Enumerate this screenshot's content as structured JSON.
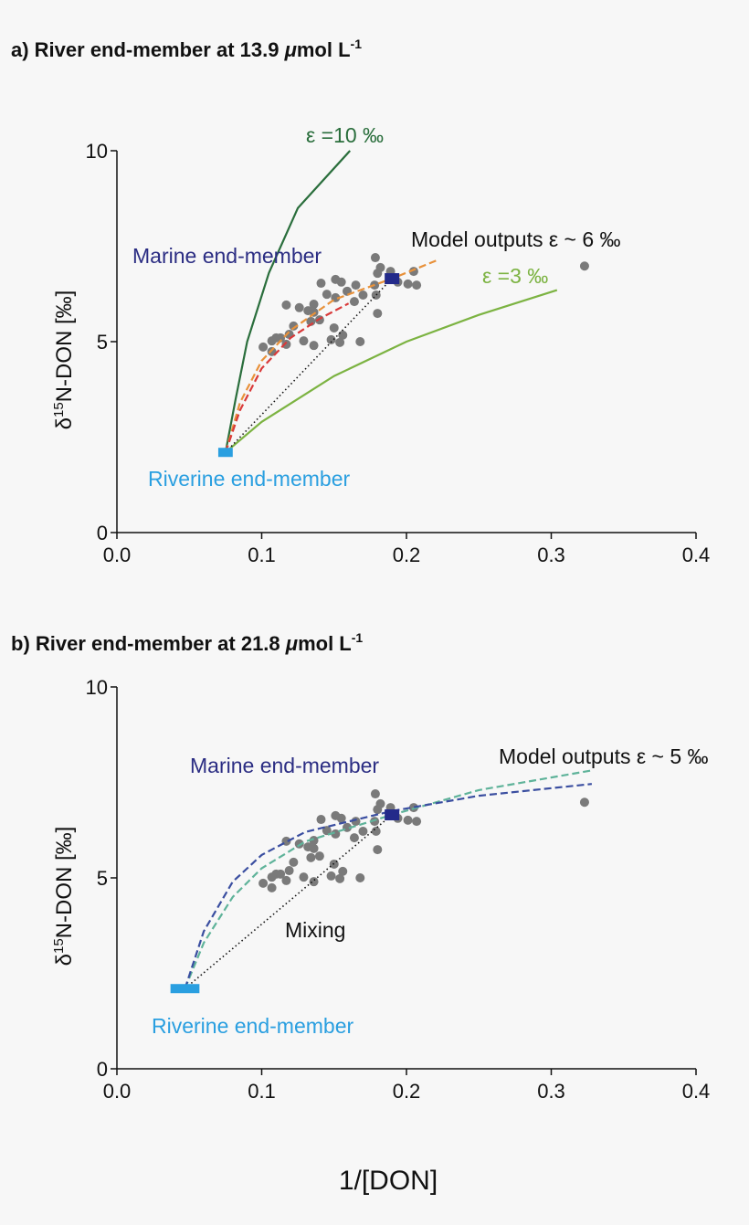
{
  "chart_data": [
    {
      "type": "scatter",
      "title": "a) River end-member at 13.9 μmol L-1",
      "title_parts": {
        "main": "a) River end-member at 13.9 ",
        "mu": "μ",
        "unit": "mol L",
        "sup": "-1"
      },
      "ylabel": {
        "delta": "δ",
        "sup": "15",
        "rest": "N-DON [‰]"
      },
      "xlim": [
        0,
        0.4
      ],
      "ylim": [
        0,
        10
      ],
      "xticks": [
        "0.0",
        "0.1",
        "0.2",
        "0.3",
        "0.4"
      ],
      "xtick_values": [
        0,
        0.1,
        0.2,
        0.3,
        0.4
      ],
      "yticks": [
        "0",
        "5",
        "10"
      ],
      "ytick_values": [
        0,
        5,
        10
      ],
      "grid": false,
      "points_color": "#7a7a7a",
      "points": [
        [
          0.1785,
          7.2
        ],
        [
          0.182,
          6.94
        ],
        [
          0.189,
          6.84
        ],
        [
          0.18,
          6.79
        ],
        [
          0.205,
          6.84
        ],
        [
          0.201,
          6.51
        ],
        [
          0.207,
          6.48
        ],
        [
          0.194,
          6.56
        ],
        [
          0.178,
          6.48
        ],
        [
          0.179,
          6.22
        ],
        [
          0.18,
          5.74
        ],
        [
          0.141,
          6.53
        ],
        [
          0.151,
          6.63
        ],
        [
          0.155,
          6.56
        ],
        [
          0.165,
          6.48
        ],
        [
          0.159,
          6.32
        ],
        [
          0.145,
          6.24
        ],
        [
          0.151,
          6.15
        ],
        [
          0.17,
          6.22
        ],
        [
          0.164,
          6.05
        ],
        [
          0.117,
          5.96
        ],
        [
          0.126,
          5.89
        ],
        [
          0.136,
          5.98
        ],
        [
          0.132,
          5.81
        ],
        [
          0.136,
          5.77
        ],
        [
          0.134,
          5.53
        ],
        [
          0.14,
          5.57
        ],
        [
          0.122,
          5.41
        ],
        [
          0.119,
          5.19
        ],
        [
          0.11,
          5.1
        ],
        [
          0.107,
          5.02
        ],
        [
          0.113,
          5.1
        ],
        [
          0.101,
          4.86
        ],
        [
          0.107,
          4.74
        ],
        [
          0.117,
          4.93
        ],
        [
          0.136,
          4.9
        ],
        [
          0.15,
          5.36
        ],
        [
          0.156,
          5.17
        ],
        [
          0.154,
          4.98
        ],
        [
          0.168,
          5.0
        ],
        [
          0.148,
          5.05
        ],
        [
          0.129,
          5.02
        ],
        [
          0.323,
          6.98
        ]
      ],
      "riverine_end_member": {
        "label": "Riverine end-member",
        "x": [
          0.07,
          0.08
        ],
        "y": 2.1,
        "color": "#2a9fe0"
      },
      "marine_end_member": {
        "label": "Marine end-member",
        "x": 0.19,
        "y": 6.65,
        "color": "#232a8a"
      },
      "curves": [
        {
          "name": "ε =10 ‰",
          "style": "solid",
          "color": "#2a6e3c",
          "points": [
            [
              0.075,
              2.1
            ],
            [
              0.082,
              3.5
            ],
            [
              0.09,
              5.0
            ],
            [
              0.105,
              6.8
            ],
            [
              0.125,
              8.5
            ],
            [
              0.161,
              10
            ]
          ]
        },
        {
          "name": "ε =3 ‰",
          "style": "solid",
          "color": "#7cb342",
          "points": [
            [
              0.075,
              2.1
            ],
            [
              0.1,
              2.9
            ],
            [
              0.15,
              4.1
            ],
            [
              0.2,
              5.0
            ],
            [
              0.25,
              5.7
            ],
            [
              0.304,
              6.35
            ]
          ]
        },
        {
          "name": "Model outputs ε ~ 6 ‰",
          "style": "dashed",
          "color": "#e8913a",
          "points": [
            [
              0.075,
              2.1
            ],
            [
              0.085,
              3.4
            ],
            [
              0.1,
              4.5
            ],
            [
              0.12,
              5.3
            ],
            [
              0.15,
              6.1
            ],
            [
              0.19,
              6.65
            ],
            [
              0.221,
              7.13
            ]
          ]
        },
        {
          "name": "",
          "style": "dashed",
          "color": "#d93a3a",
          "points": [
            [
              0.075,
              2.1
            ],
            [
              0.085,
              3.2
            ],
            [
              0.1,
              4.3
            ],
            [
              0.12,
              5.1
            ],
            [
              0.14,
              5.6
            ],
            [
              0.16,
              6.0
            ]
          ]
        },
        {
          "name": "",
          "style": "dotted",
          "color": "#111111",
          "points": [
            [
              0.075,
              2.1
            ],
            [
              0.19,
              6.65
            ]
          ]
        }
      ]
    },
    {
      "type": "scatter",
      "title": "b) River end-member at 21.8 μmol L-1",
      "title_parts": {
        "main": "b) River end-member at 21.8 ",
        "mu": "μ",
        "unit": "mol L",
        "sup": "-1"
      },
      "ylabel": {
        "delta": "δ",
        "sup": "15",
        "rest": "N-DON [‰]"
      },
      "xlabel": "1/[DON]",
      "xlim": [
        0,
        0.4
      ],
      "ylim": [
        0,
        10
      ],
      "xticks": [
        "0.0",
        "0.1",
        "0.2",
        "0.3",
        "0.4"
      ],
      "xtick_values": [
        0,
        0.1,
        0.2,
        0.3,
        0.4
      ],
      "yticks": [
        "0",
        "5",
        "10"
      ],
      "ytick_values": [
        0,
        5,
        10
      ],
      "grid": false,
      "points_color": "#7a7a7a",
      "points": [
        [
          0.1785,
          7.2
        ],
        [
          0.182,
          6.94
        ],
        [
          0.189,
          6.84
        ],
        [
          0.18,
          6.79
        ],
        [
          0.205,
          6.84
        ],
        [
          0.201,
          6.51
        ],
        [
          0.207,
          6.48
        ],
        [
          0.194,
          6.56
        ],
        [
          0.178,
          6.48
        ],
        [
          0.179,
          6.22
        ],
        [
          0.18,
          5.74
        ],
        [
          0.141,
          6.53
        ],
        [
          0.151,
          6.63
        ],
        [
          0.155,
          6.56
        ],
        [
          0.165,
          6.48
        ],
        [
          0.159,
          6.32
        ],
        [
          0.145,
          6.24
        ],
        [
          0.151,
          6.15
        ],
        [
          0.17,
          6.22
        ],
        [
          0.164,
          6.05
        ],
        [
          0.117,
          5.96
        ],
        [
          0.126,
          5.89
        ],
        [
          0.136,
          5.98
        ],
        [
          0.132,
          5.81
        ],
        [
          0.136,
          5.77
        ],
        [
          0.134,
          5.53
        ],
        [
          0.14,
          5.57
        ],
        [
          0.122,
          5.41
        ],
        [
          0.119,
          5.19
        ],
        [
          0.11,
          5.1
        ],
        [
          0.107,
          5.02
        ],
        [
          0.113,
          5.1
        ],
        [
          0.101,
          4.86
        ],
        [
          0.107,
          4.74
        ],
        [
          0.117,
          4.93
        ],
        [
          0.136,
          4.9
        ],
        [
          0.15,
          5.36
        ],
        [
          0.156,
          5.17
        ],
        [
          0.154,
          4.98
        ],
        [
          0.168,
          5.0
        ],
        [
          0.148,
          5.05
        ],
        [
          0.129,
          5.02
        ],
        [
          0.323,
          6.98
        ]
      ],
      "riverine_end_member": {
        "label": "Riverine end-member",
        "x": [
          0.037,
          0.057
        ],
        "y": 2.1,
        "color": "#2a9fe0"
      },
      "marine_end_member": {
        "label": "Marine end-member",
        "x": 0.19,
        "y": 6.65,
        "color": "#232a8a"
      },
      "curves": [
        {
          "name": "Model outputs ε ~ 5 ‰",
          "style": "dashed",
          "color": "#5fb39a",
          "points": [
            [
              0.047,
              2.1
            ],
            [
              0.06,
              3.3
            ],
            [
              0.08,
              4.5
            ],
            [
              0.1,
              5.25
            ],
            [
              0.13,
              5.95
            ],
            [
              0.19,
              6.65
            ],
            [
              0.25,
              7.3
            ],
            [
              0.329,
              7.82
            ]
          ]
        },
        {
          "name": "",
          "style": "dashed",
          "color": "#3a4ea0",
          "points": [
            [
              0.047,
              2.1
            ],
            [
              0.06,
              3.6
            ],
            [
              0.08,
              4.9
            ],
            [
              0.1,
              5.6
            ],
            [
              0.13,
              6.2
            ],
            [
              0.19,
              6.75
            ],
            [
              0.25,
              7.15
            ],
            [
              0.328,
              7.46
            ]
          ]
        },
        {
          "name": "Mixing",
          "style": "dotted",
          "color": "#111111",
          "points": [
            [
              0.047,
              2.1
            ],
            [
              0.19,
              6.65
            ]
          ]
        }
      ]
    }
  ]
}
